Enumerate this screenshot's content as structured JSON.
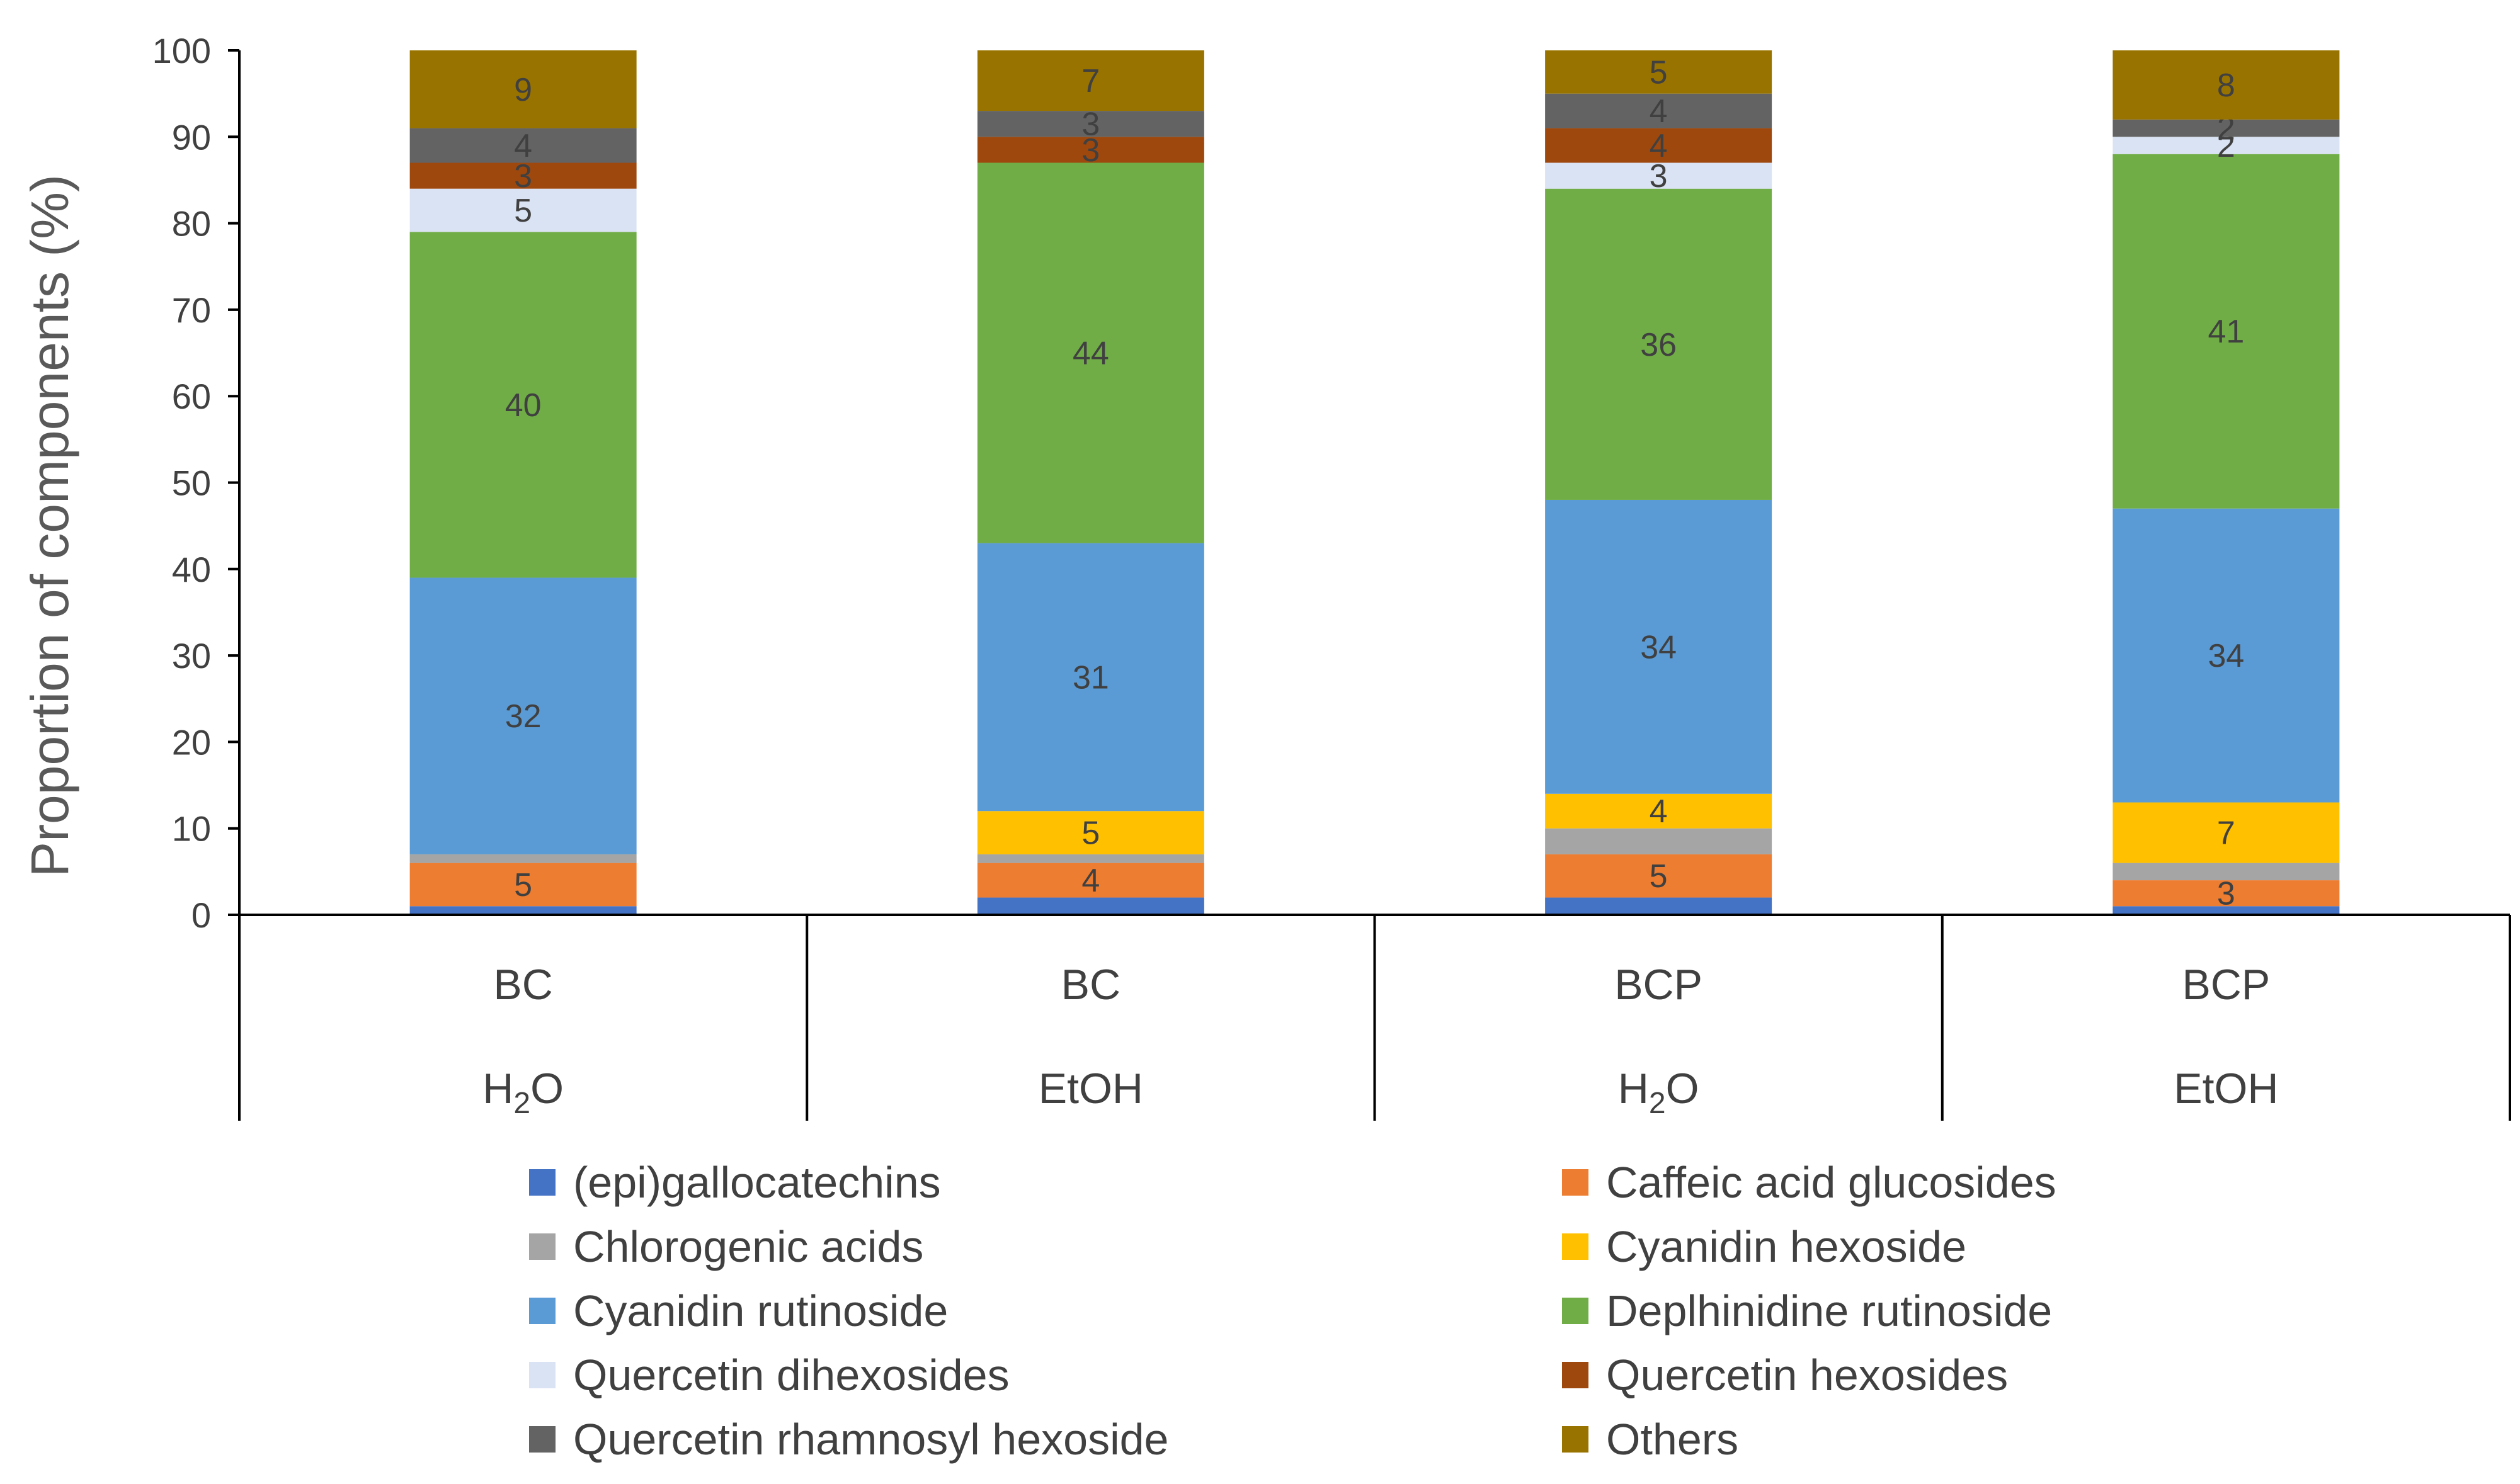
{
  "chart_data": {
    "type": "bar",
    "stacked": true,
    "title": "",
    "ylabel": "Proportion of components (%)",
    "xlabel": "",
    "ylim": [
      0,
      100
    ],
    "yticks": [
      "0",
      "10",
      "20",
      "30",
      "40",
      "50",
      "60",
      "70",
      "80",
      "90",
      "100"
    ],
    "categories": [
      {
        "label": "BC",
        "solvent": "H",
        "solvent_sub": "2",
        "solvent_end": "O"
      },
      {
        "label": "BC",
        "solvent": "EtOH",
        "solvent_sub": "",
        "solvent_end": ""
      },
      {
        "label": "BCP",
        "solvent": "H",
        "solvent_sub": "2",
        "solvent_end": "O"
      },
      {
        "label": "BCP",
        "solvent": "EtOH",
        "solvent_sub": "",
        "solvent_end": ""
      }
    ],
    "series": [
      {
        "name": "(epi)gallocatechins",
        "color": "#4472C4",
        "values": [
          1,
          2,
          2,
          1
        ],
        "labels": [
          "",
          "",
          "",
          ""
        ]
      },
      {
        "name": "Caffeic acid glucosides",
        "color": "#ED7D31",
        "values": [
          5,
          4,
          5,
          3
        ],
        "labels": [
          "5",
          "4",
          "5",
          "3"
        ]
      },
      {
        "name": "Chlorogenic acids",
        "color": "#A5A5A5",
        "values": [
          1,
          1,
          3,
          2
        ],
        "labels": [
          "",
          "",
          "",
          ""
        ]
      },
      {
        "name": "Cyanidin hexoside",
        "color": "#FFC000",
        "values": [
          0,
          5,
          4,
          7
        ],
        "labels": [
          "",
          "5",
          "4",
          "7"
        ]
      },
      {
        "name": "Cyanidin rutinoside",
        "color": "#5B9BD5",
        "values": [
          32,
          31,
          34,
          34
        ],
        "labels": [
          "32",
          "31",
          "34",
          "34"
        ]
      },
      {
        "name": "Deplhinidine rutinoside",
        "color": "#70AD47",
        "values": [
          40,
          44,
          36,
          41
        ],
        "labels": [
          "40",
          "44",
          "36",
          "41"
        ]
      },
      {
        "name": "Quercetin dihexosides",
        "color": "#DAE3F3",
        "values": [
          5,
          0,
          3,
          2
        ],
        "labels": [
          "5",
          "",
          "3",
          "2"
        ]
      },
      {
        "name": "Quercetin hexosides",
        "color": "#9E480E",
        "values": [
          3,
          3,
          4,
          0
        ],
        "labels": [
          "3",
          "3",
          "4",
          ""
        ]
      },
      {
        "name": "Quercetin rhamnosyl hexoside",
        "color": "#636363",
        "values": [
          4,
          3,
          4,
          2
        ],
        "labels": [
          "4",
          "3",
          "4",
          "2"
        ]
      },
      {
        "name": "Others",
        "color": "#997300",
        "values": [
          9,
          7,
          5,
          8
        ],
        "labels": [
          "9",
          "7",
          "5",
          "8"
        ]
      }
    ],
    "grid": false,
    "legend_position": "bottom"
  }
}
